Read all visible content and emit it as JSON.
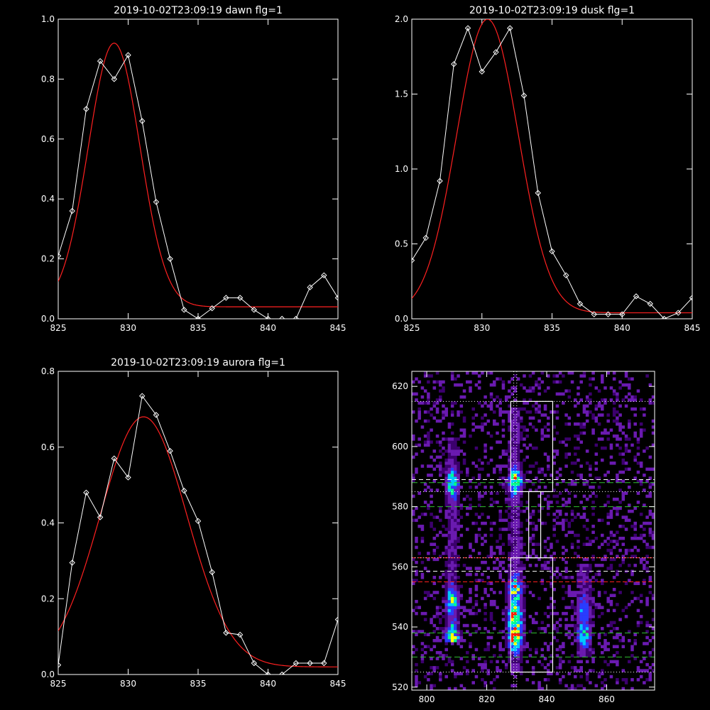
{
  "colors": {
    "background": "#000000",
    "foreground": "#ffffff",
    "fit": "#ff2020",
    "guide_green": "#30c030",
    "guide_red": "#ff2020"
  },
  "chart_data": [
    {
      "type": "line",
      "title": "2019-10-02T23:09:19 dawn flg=1",
      "xlim": [
        825,
        845
      ],
      "ylim": [
        0,
        1.0
      ],
      "xticks": [
        "825",
        "830",
        "835",
        "840",
        "845"
      ],
      "yticks": [
        "0.0",
        "0.2",
        "0.4",
        "0.6",
        "0.8",
        "1.0"
      ],
      "series": [
        {
          "x": [
            825,
            826,
            827,
            828,
            829,
            830,
            831,
            832,
            833,
            834,
            835,
            836,
            837,
            838,
            839,
            840,
            841,
            842,
            843,
            844,
            845
          ],
          "y": [
            0.21,
            0.36,
            0.7,
            0.86,
            0.8,
            0.88,
            0.66,
            0.39,
            0.2,
            0.03,
            0.0,
            0.035,
            0.07,
            0.07,
            0.03,
            0.0,
            0.0,
            0.0,
            0.105,
            0.145,
            0.07
          ]
        }
      ],
      "fit": {
        "amplitude": 0.88,
        "center": 829.0,
        "sigma": 1.85,
        "baseline": 0.04
      }
    },
    {
      "type": "line",
      "title": "2019-10-02T23:09:19 dusk flg=1",
      "xlim": [
        825,
        845
      ],
      "ylim": [
        0,
        2.0
      ],
      "xticks": [
        "825",
        "830",
        "835",
        "840",
        "845"
      ],
      "yticks": [
        "0.0",
        "0.5",
        "1.0",
        "1.5",
        "2.0"
      ],
      "series": [
        {
          "x": [
            825,
            826,
            827,
            828,
            829,
            830,
            831,
            832,
            833,
            834,
            835,
            836,
            837,
            838,
            839,
            840,
            841,
            842,
            843,
            844,
            845
          ],
          "y": [
            0.39,
            0.54,
            0.92,
            1.7,
            1.94,
            1.65,
            1.78,
            1.94,
            1.49,
            0.84,
            0.45,
            0.29,
            0.1,
            0.03,
            0.03,
            0.03,
            0.15,
            0.1,
            0.0,
            0.04,
            0.14
          ]
        }
      ],
      "fit": {
        "amplitude": 1.96,
        "center": 830.4,
        "sigma": 2.2,
        "baseline": 0.04
      }
    },
    {
      "type": "line",
      "title": "2019-10-02T23:09:19 aurora flg=1",
      "xlim": [
        825,
        845
      ],
      "ylim": [
        0,
        0.8
      ],
      "xticks": [
        "825",
        "830",
        "835",
        "840",
        "845"
      ],
      "yticks": [
        "0.0",
        "0.2",
        "0.4",
        "0.6",
        "0.8"
      ],
      "series": [
        {
          "x": [
            825,
            826,
            827,
            828,
            829,
            830,
            831,
            832,
            833,
            834,
            835,
            836,
            837,
            838,
            839,
            840,
            841,
            842,
            843,
            844,
            845
          ],
          "y": [
            0.025,
            0.295,
            0.48,
            0.415,
            0.57,
            0.52,
            0.735,
            0.685,
            0.59,
            0.485,
            0.405,
            0.27,
            0.11,
            0.105,
            0.03,
            0.0,
            0.0,
            0.03,
            0.03,
            0.03,
            0.145
          ]
        }
      ],
      "fit": {
        "amplitude": 0.66,
        "center": 831.1,
        "sigma": 3.1,
        "baseline": 0.02
      }
    },
    {
      "type": "heatmap",
      "title": "",
      "xlim": [
        795,
        876
      ],
      "ylim": [
        519,
        625
      ],
      "xticks": [
        "800",
        "820",
        "840",
        "860"
      ],
      "yticks": [
        "520",
        "540",
        "560",
        "580",
        "600",
        "620"
      ],
      "colormap": [
        "#000000",
        "#3c006e",
        "#6a1ab0",
        "#2a3cff",
        "#00c8ff",
        "#00ff90",
        "#ffff00",
        "#ff2000"
      ],
      "emission_columns": [
        {
          "center": 808,
          "width": 2.2,
          "y_from": 535,
          "y_to": 602,
          "peaks": [
            {
              "y": 536,
              "amp": 0.95
            },
            {
              "y": 548,
              "amp": 0.7
            },
            {
              "y": 587,
              "amp": 0.7
            }
          ]
        },
        {
          "center": 829,
          "width": 2.3,
          "y_from": 525,
          "y_to": 612,
          "peaks": [
            {
              "y": 536,
              "amp": 1.0
            },
            {
              "y": 543,
              "amp": 1.0
            },
            {
              "y": 552,
              "amp": 0.8
            },
            {
              "y": 588,
              "amp": 0.9
            }
          ]
        },
        {
          "center": 852,
          "width": 2.5,
          "y_from": 530,
          "y_to": 560,
          "peaks": [
            {
              "y": 537,
              "amp": 0.55
            },
            {
              "y": 545,
              "amp": 0.4
            }
          ]
        }
      ],
      "boxes": [
        {
          "x0": 828,
          "x1": 842,
          "y0": 585,
          "y1": 615
        },
        {
          "x0": 834,
          "x1": 838,
          "y0": 563,
          "y1": 585
        },
        {
          "x0": 828,
          "x1": 842,
          "y0": 525,
          "y1": 563
        }
      ],
      "vlines_dotted": [
        829,
        830
      ],
      "hlines_white_dotted": [
        525,
        563,
        585,
        615
      ],
      "hlines_white_dashed": [
        558.5,
        589
      ],
      "hlines_green_dashed": [
        530,
        538,
        580,
        588
      ],
      "hlines_red_dashed": [
        555,
        563
      ]
    }
  ]
}
